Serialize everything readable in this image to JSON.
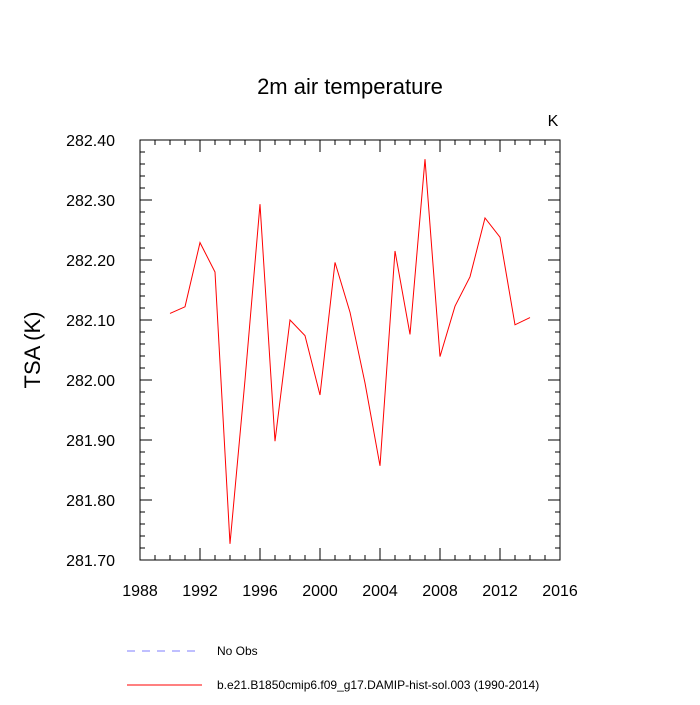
{
  "chart_data": {
    "type": "line",
    "title": "2m air temperature",
    "ylabel": "TSA  (K)",
    "xlabel": "",
    "units_label": "K",
    "xlim": [
      1988,
      2016
    ],
    "ylim": [
      281.7,
      282.4
    ],
    "xticks": [
      1988,
      1992,
      1996,
      2000,
      2004,
      2008,
      2012,
      2016
    ],
    "yticks": [
      281.7,
      281.8,
      281.9,
      282.0,
      282.1,
      282.2,
      282.3,
      282.4
    ],
    "xtick_labels": [
      "1988",
      "1992",
      "1996",
      "2000",
      "2004",
      "2008",
      "2012",
      "2016"
    ],
    "ytick_labels": [
      "281.70",
      "281.80",
      "281.90",
      "282.00",
      "282.10",
      "282.20",
      "282.30",
      "282.40"
    ],
    "grid": false,
    "legend_position": "bottom",
    "series": [
      {
        "name": "b.e21.B1850cmip6.f09_g17.DAMIP-hist-sol.003 (1990-2014)",
        "color": "#ff0000",
        "style": "solid",
        "x": [
          1990,
          1991,
          1992,
          1993,
          1994,
          1995,
          1996,
          1997,
          1998,
          1999,
          2000,
          2001,
          2002,
          2003,
          2004,
          2005,
          2006,
          2007,
          2008,
          2009,
          2010,
          2011,
          2012,
          2013,
          2014
        ],
        "values": [
          282.111,
          282.122,
          282.229,
          282.18,
          281.727,
          282.0,
          282.293,
          281.898,
          282.1,
          282.074,
          281.975,
          282.196,
          282.113,
          281.995,
          281.857,
          282.215,
          282.076,
          282.368,
          282.039,
          282.123,
          282.172,
          282.27,
          282.238,
          282.092,
          282.104
        ]
      }
    ],
    "legend": [
      {
        "label": "No Obs",
        "color": "#7f7fff",
        "style": "dashed"
      },
      {
        "label": "b.e21.B1850cmip6.f09_g17.DAMIP-hist-sol.003 (1990-2014)",
        "color": "#ff0000",
        "style": "solid"
      }
    ]
  }
}
